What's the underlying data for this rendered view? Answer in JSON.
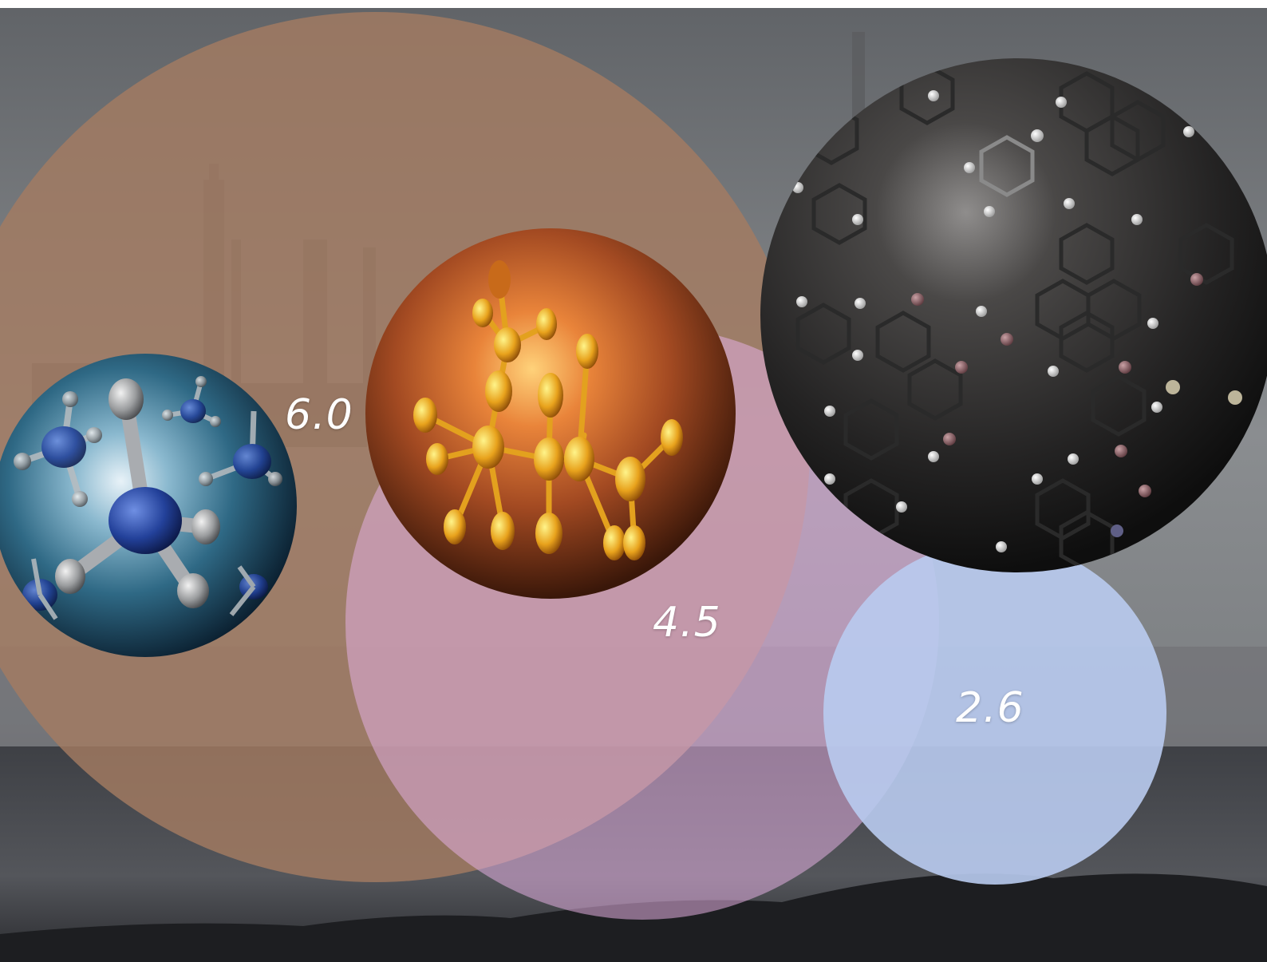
{
  "values": {
    "large_bubble": "6.0",
    "medium_bubble": "4.5",
    "small_bubble": "2.6"
  },
  "colors": {
    "large_bubble": "#9b7b66",
    "medium_bubble": "#d9a6d4",
    "small_bubble": "#b4c6ea",
    "sky": "#6e7175",
    "ground": "#2b2c30"
  },
  "molecules": {
    "left_sphere": "methane-molecule",
    "middle_sphere": "branched-hydrocarbon-molecule",
    "right_sphere": "polycyclic-aromatic-molecule"
  }
}
